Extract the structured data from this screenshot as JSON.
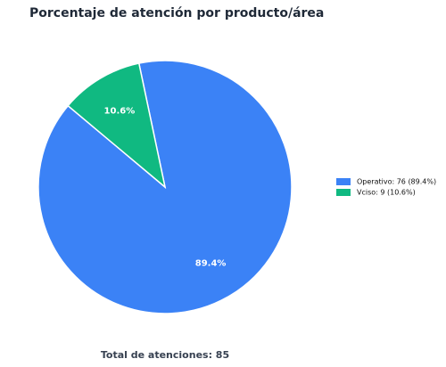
{
  "chart_data": {
    "type": "pie",
    "title": "Porcentaje de atención por producto/área",
    "categories": [
      "Operativo: 76 (89.4%)",
      "Vciso: 9 (10.6%)"
    ],
    "values": [
      76,
      9
    ],
    "value_labels": [
      "89.4%",
      "10.6%"
    ],
    "colors": [
      "#3b82f6",
      "#10b981"
    ],
    "legend": "right",
    "footer": "Total de atenciones: 85"
  }
}
